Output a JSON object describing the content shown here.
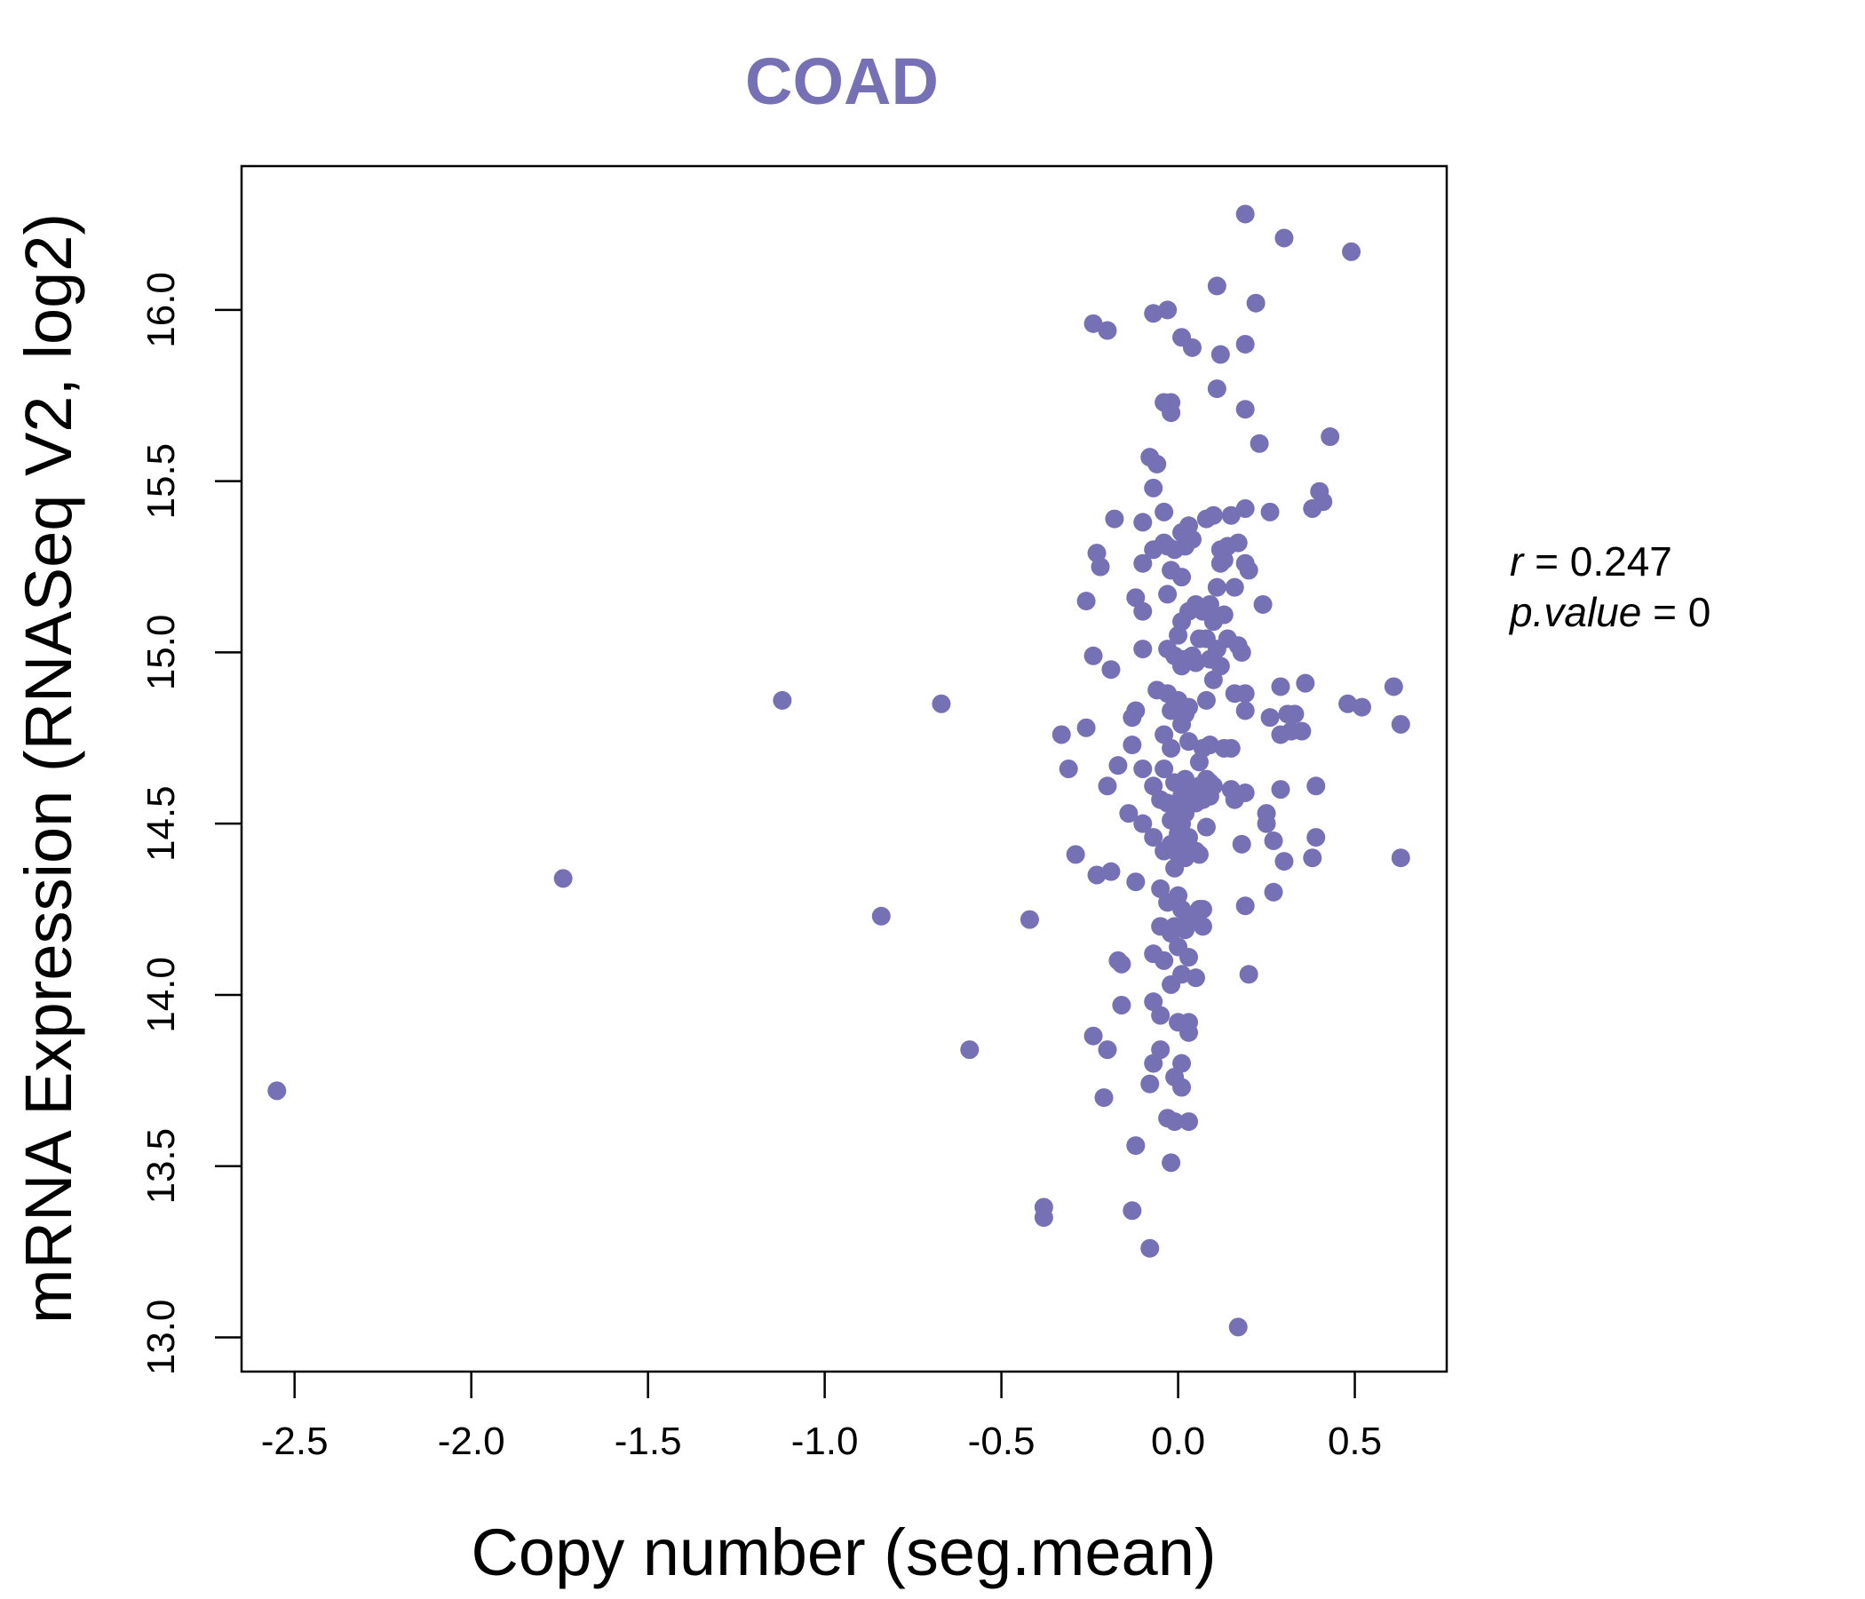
{
  "chart_data": {
    "type": "scatter",
    "title": "COAD",
    "xlabel": "Copy number (seg.mean)",
    "ylabel": "mRNA Expression (RNASeq V2, log2)",
    "xlim": [
      -2.65,
      0.76
    ],
    "ylim": [
      12.9,
      16.42
    ],
    "xticks": [
      -2.5,
      -2.0,
      -1.5,
      -1.0,
      -0.5,
      0.0,
      0.5
    ],
    "xtick_labels": [
      "-2.5",
      "-2.0",
      "-1.5",
      "-1.0",
      "-0.5",
      "0.0",
      "0.5"
    ],
    "yticks": [
      13.0,
      13.5,
      14.0,
      14.5,
      15.0,
      15.5,
      16.0
    ],
    "ytick_labels": [
      "13.0",
      "13.5",
      "14.0",
      "14.5",
      "15.0",
      "15.5",
      "16.0"
    ],
    "color": "#7670b5",
    "annotation": {
      "r_label": "r",
      "r_value": "0.247",
      "p_label": "p.value",
      "p_value": "0"
    },
    "points": [
      [
        -2.55,
        13.72
      ],
      [
        -1.74,
        14.34
      ],
      [
        -1.12,
        14.86
      ],
      [
        -0.84,
        14.23
      ],
      [
        -0.67,
        14.85
      ],
      [
        -0.59,
        13.84
      ],
      [
        -0.42,
        14.22
      ],
      [
        -0.38,
        13.38
      ],
      [
        -0.38,
        13.35
      ],
      [
        -0.33,
        14.76
      ],
      [
        -0.31,
        14.66
      ],
      [
        -0.29,
        14.41
      ],
      [
        -0.26,
        15.15
      ],
      [
        -0.26,
        14.78
      ],
      [
        -0.24,
        15.96
      ],
      [
        -0.24,
        14.99
      ],
      [
        -0.23,
        15.29
      ],
      [
        -0.22,
        15.25
      ],
      [
        -0.23,
        14.35
      ],
      [
        -0.24,
        13.88
      ],
      [
        -0.2,
        15.94
      ],
      [
        -0.2,
        14.61
      ],
      [
        -0.19,
        14.95
      ],
      [
        -0.19,
        14.36
      ],
      [
        -0.2,
        13.84
      ],
      [
        -0.21,
        13.7
      ],
      [
        -0.18,
        15.39
      ],
      [
        -0.17,
        14.67
      ],
      [
        -0.17,
        14.1
      ],
      [
        -0.16,
        14.09
      ],
      [
        -0.16,
        13.97
      ],
      [
        -0.14,
        14.53
      ],
      [
        -0.13,
        14.73
      ],
      [
        -0.13,
        14.81
      ],
      [
        -0.12,
        14.83
      ],
      [
        -0.12,
        15.16
      ],
      [
        -0.12,
        14.33
      ],
      [
        -0.12,
        13.56
      ],
      [
        -0.13,
        13.37
      ],
      [
        -0.1,
        15.38
      ],
      [
        -0.1,
        15.26
      ],
      [
        -0.1,
        15.12
      ],
      [
        -0.1,
        15.01
      ],
      [
        -0.1,
        14.66
      ],
      [
        -0.1,
        14.5
      ],
      [
        -0.08,
        15.57
      ],
      [
        -0.07,
        15.48
      ],
      [
        -0.07,
        15.3
      ],
      [
        -0.07,
        14.61
      ],
      [
        -0.07,
        14.46
      ],
      [
        -0.07,
        14.12
      ],
      [
        -0.07,
        13.98
      ],
      [
        -0.07,
        13.8
      ],
      [
        -0.08,
        13.74
      ],
      [
        -0.08,
        13.26
      ],
      [
        -0.07,
        15.99
      ],
      [
        -0.06,
        15.55
      ],
      [
        -0.06,
        14.89
      ],
      [
        -0.05,
        14.57
      ],
      [
        -0.05,
        14.31
      ],
      [
        -0.05,
        14.2
      ],
      [
        -0.05,
        13.94
      ],
      [
        -0.05,
        13.84
      ],
      [
        -0.04,
        15.73
      ],
      [
        -0.04,
        15.41
      ],
      [
        -0.04,
        15.32
      ],
      [
        -0.04,
        14.76
      ],
      [
        -0.04,
        14.66
      ],
      [
        -0.04,
        14.42
      ],
      [
        -0.04,
        14.1
      ],
      [
        -0.03,
        16.0
      ],
      [
        -0.03,
        15.31
      ],
      [
        -0.03,
        15.17
      ],
      [
        -0.03,
        15.01
      ],
      [
        -0.03,
        14.88
      ],
      [
        -0.03,
        14.56
      ],
      [
        -0.03,
        14.27
      ],
      [
        -0.03,
        13.64
      ],
      [
        -0.02,
        15.7
      ],
      [
        -0.02,
        15.73
      ],
      [
        -0.02,
        15.24
      ],
      [
        -0.02,
        14.83
      ],
      [
        -0.02,
        14.72
      ],
      [
        -0.02,
        14.51
      ],
      [
        -0.02,
        14.44
      ],
      [
        -0.02,
        14.18
      ],
      [
        -0.02,
        14.03
      ],
      [
        -0.02,
        13.51
      ],
      [
        -0.01,
        15.3
      ],
      [
        -0.01,
        14.99
      ],
      [
        -0.01,
        14.62
      ],
      [
        -0.01,
        14.37
      ],
      [
        -0.01,
        14.2
      ],
      [
        -0.01,
        13.76
      ],
      [
        -0.01,
        13.63
      ],
      [
        0.0,
        15.05
      ],
      [
        0.0,
        14.86
      ],
      [
        0.0,
        14.53
      ],
      [
        0.0,
        14.47
      ],
      [
        0.0,
        14.41
      ],
      [
        0.0,
        14.29
      ],
      [
        0.0,
        14.14
      ],
      [
        0.0,
        13.92
      ],
      [
        0.01,
        15.92
      ],
      [
        0.01,
        15.35
      ],
      [
        0.01,
        15.22
      ],
      [
        0.01,
        15.09
      ],
      [
        0.01,
        14.96
      ],
      [
        0.01,
        14.79
      ],
      [
        0.01,
        14.58
      ],
      [
        0.01,
        14.5
      ],
      [
        0.01,
        14.44
      ],
      [
        0.01,
        14.25
      ],
      [
        0.01,
        14.06
      ],
      [
        0.01,
        13.8
      ],
      [
        0.01,
        13.73
      ],
      [
        0.02,
        15.31
      ],
      [
        0.02,
        14.98
      ],
      [
        0.02,
        14.82
      ],
      [
        0.02,
        14.63
      ],
      [
        0.02,
        14.53
      ],
      [
        0.02,
        14.4
      ],
      [
        0.02,
        14.19
      ],
      [
        0.03,
        15.37
      ],
      [
        0.03,
        15.12
      ],
      [
        0.03,
        14.84
      ],
      [
        0.03,
        14.74
      ],
      [
        0.03,
        14.46
      ],
      [
        0.03,
        14.22
      ],
      [
        0.03,
        14.11
      ],
      [
        0.03,
        13.92
      ],
      [
        0.03,
        13.89
      ],
      [
        0.03,
        13.63
      ],
      [
        0.04,
        15.89
      ],
      [
        0.04,
        15.33
      ],
      [
        0.04,
        14.99
      ],
      [
        0.04,
        14.59
      ],
      [
        0.05,
        15.14
      ],
      [
        0.05,
        14.97
      ],
      [
        0.05,
        14.56
      ],
      [
        0.05,
        14.42
      ],
      [
        0.05,
        14.23
      ],
      [
        0.05,
        14.05
      ],
      [
        0.06,
        15.04
      ],
      [
        0.06,
        14.68
      ],
      [
        0.06,
        14.61
      ],
      [
        0.06,
        14.41
      ],
      [
        0.06,
        14.25
      ],
      [
        0.07,
        15.12
      ],
      [
        0.07,
        14.72
      ],
      [
        0.07,
        14.57
      ],
      [
        0.07,
        14.2
      ],
      [
        0.07,
        14.25
      ],
      [
        0.08,
        15.39
      ],
      [
        0.08,
        15.04
      ],
      [
        0.08,
        14.86
      ],
      [
        0.08,
        14.63
      ],
      [
        0.08,
        14.49
      ],
      [
        0.09,
        15.14
      ],
      [
        0.09,
        14.98
      ],
      [
        0.09,
        14.73
      ],
      [
        0.09,
        14.62
      ],
      [
        0.09,
        14.58
      ],
      [
        0.1,
        15.4
      ],
      [
        0.1,
        15.09
      ],
      [
        0.1,
        14.92
      ],
      [
        0.1,
        14.61
      ],
      [
        0.11,
        16.07
      ],
      [
        0.11,
        15.77
      ],
      [
        0.11,
        15.19
      ],
      [
        0.11,
        15.01
      ],
      [
        0.12,
        15.87
      ],
      [
        0.12,
        15.3
      ],
      [
        0.12,
        15.26
      ],
      [
        0.12,
        14.96
      ],
      [
        0.13,
        15.27
      ],
      [
        0.13,
        15.11
      ],
      [
        0.13,
        14.72
      ],
      [
        0.14,
        15.31
      ],
      [
        0.14,
        15.04
      ],
      [
        0.15,
        15.4
      ],
      [
        0.15,
        14.72
      ],
      [
        0.15,
        14.6
      ],
      [
        0.16,
        15.19
      ],
      [
        0.16,
        14.88
      ],
      [
        0.16,
        14.57
      ],
      [
        0.17,
        15.32
      ],
      [
        0.17,
        15.02
      ],
      [
        0.17,
        13.03
      ],
      [
        0.18,
        15.0
      ],
      [
        0.18,
        14.44
      ],
      [
        0.19,
        16.28
      ],
      [
        0.19,
        15.9
      ],
      [
        0.19,
        15.71
      ],
      [
        0.19,
        15.42
      ],
      [
        0.19,
        15.26
      ],
      [
        0.19,
        14.83
      ],
      [
        0.19,
        14.59
      ],
      [
        0.19,
        14.88
      ],
      [
        0.19,
        14.26
      ],
      [
        0.2,
        15.24
      ],
      [
        0.2,
        14.06
      ],
      [
        0.22,
        16.02
      ],
      [
        0.23,
        15.61
      ],
      [
        0.24,
        15.14
      ],
      [
        0.25,
        14.53
      ],
      [
        0.25,
        14.5
      ],
      [
        0.26,
        15.41
      ],
      [
        0.26,
        14.81
      ],
      [
        0.27,
        14.3
      ],
      [
        0.27,
        14.45
      ],
      [
        0.29,
        14.9
      ],
      [
        0.29,
        14.76
      ],
      [
        0.29,
        14.6
      ],
      [
        0.3,
        16.21
      ],
      [
        0.3,
        14.39
      ],
      [
        0.31,
        14.82
      ],
      [
        0.32,
        14.77
      ],
      [
        0.33,
        14.82
      ],
      [
        0.35,
        14.77
      ],
      [
        0.36,
        14.91
      ],
      [
        0.38,
        14.4
      ],
      [
        0.38,
        15.42
      ],
      [
        0.39,
        14.46
      ],
      [
        0.39,
        14.61
      ],
      [
        0.4,
        15.47
      ],
      [
        0.41,
        15.44
      ],
      [
        0.43,
        15.63
      ],
      [
        0.48,
        14.85
      ],
      [
        0.49,
        16.17
      ],
      [
        0.52,
        14.84
      ],
      [
        0.61,
        14.9
      ],
      [
        0.63,
        14.79
      ],
      [
        0.63,
        14.4
      ]
    ]
  }
}
